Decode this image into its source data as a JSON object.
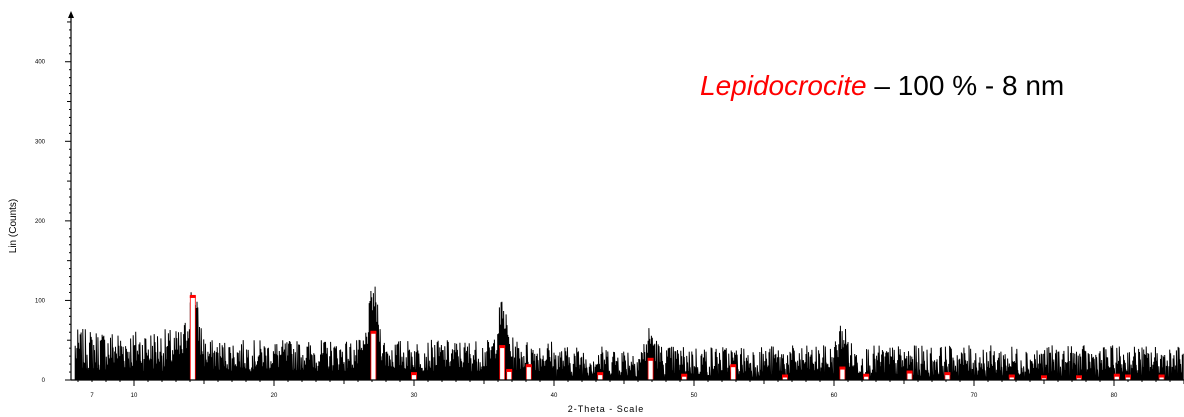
{
  "colors": {
    "pattern": "#000000",
    "reference": "#ff0000",
    "background": "#ffffff"
  },
  "annotation": {
    "phase": "Lepidocrocite",
    "rest": " – 100 % - 8 nm",
    "phase_color": "#ff0000"
  },
  "chart_data": {
    "type": "line",
    "title": "",
    "xlabel": "2-Theta - Scale",
    "ylabel": "Lin (Counts)",
    "xlim": [
      5.5,
      85
    ],
    "ylim": [
      0,
      460
    ],
    "x_ticks": [
      7,
      10,
      20,
      30,
      40,
      50,
      60,
      70,
      80
    ],
    "y_ticks": [
      0,
      100,
      200,
      300,
      400
    ],
    "grid": false,
    "series": [
      {
        "role": "measured pattern",
        "color": "#000000",
        "baseline_counts": 28,
        "noise_counts": 22,
        "peaks": [
          {
            "two_theta": 14.2,
            "counts": 88
          },
          {
            "two_theta": 27.1,
            "counts": 100
          },
          {
            "two_theta": 36.3,
            "counts": 80
          },
          {
            "two_theta": 46.9,
            "counts": 55
          },
          {
            "two_theta": 60.6,
            "counts": 60
          }
        ]
      },
      {
        "role": "Lepidocrocite reference sticks",
        "color": "#ff0000",
        "sticks": [
          {
            "two_theta": 14.2,
            "counts": 105
          },
          {
            "two_theta": 27.1,
            "counts": 60
          },
          {
            "two_theta": 30.0,
            "counts": 8
          },
          {
            "two_theta": 36.3,
            "counts": 42
          },
          {
            "two_theta": 36.8,
            "counts": 12
          },
          {
            "two_theta": 38.2,
            "counts": 18
          },
          {
            "two_theta": 43.3,
            "counts": 8
          },
          {
            "two_theta": 46.9,
            "counts": 26
          },
          {
            "two_theta": 49.3,
            "counts": 6
          },
          {
            "two_theta": 52.8,
            "counts": 18
          },
          {
            "two_theta": 56.5,
            "counts": 5
          },
          {
            "two_theta": 60.6,
            "counts": 15
          },
          {
            "two_theta": 62.3,
            "counts": 6
          },
          {
            "two_theta": 65.4,
            "counts": 10
          },
          {
            "two_theta": 68.1,
            "counts": 8
          },
          {
            "two_theta": 72.7,
            "counts": 5
          },
          {
            "two_theta": 75.0,
            "counts": 4
          },
          {
            "two_theta": 77.5,
            "counts": 4
          },
          {
            "two_theta": 80.2,
            "counts": 6
          },
          {
            "two_theta": 81.0,
            "counts": 5
          },
          {
            "two_theta": 83.4,
            "counts": 5
          }
        ]
      }
    ]
  }
}
